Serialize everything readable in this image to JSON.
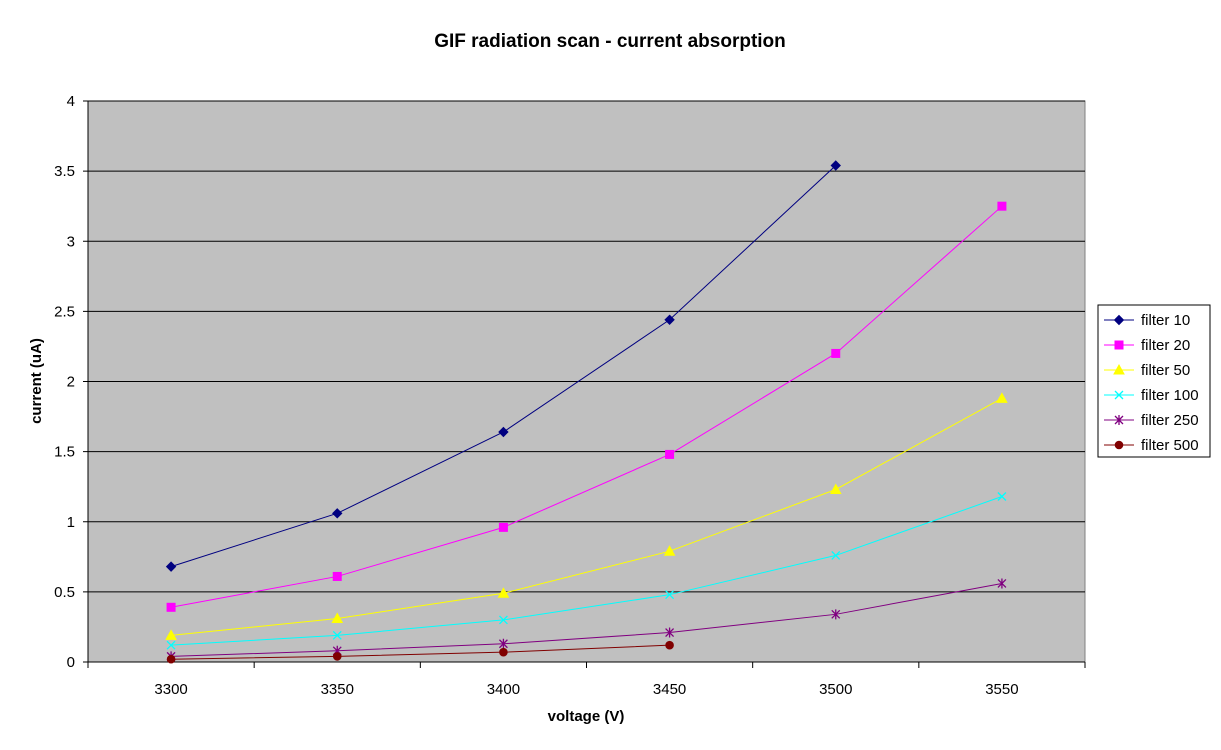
{
  "chart_data": {
    "type": "line",
    "title": "GIF radiation scan - current absorption",
    "xlabel": "voltage (V)",
    "ylabel": "current (uA)",
    "categories": [
      "3300",
      "3350",
      "3400",
      "3450",
      "3500",
      "3550"
    ],
    "ylim": [
      0,
      4
    ],
    "yticks": [
      "0",
      "0.5",
      "1",
      "1.5",
      "2",
      "2.5",
      "3",
      "3.5",
      "4"
    ],
    "grid": "horizontal major gridlines",
    "plot_background": "#C0C0C0",
    "legend_position": "right",
    "series": [
      {
        "name": "filter 10",
        "color": "#000080",
        "marker": "diamond",
        "values": [
          0.68,
          1.06,
          1.64,
          2.44,
          3.54,
          null
        ]
      },
      {
        "name": "filter 20",
        "color": "#FF00FF",
        "marker": "square",
        "values": [
          0.39,
          0.61,
          0.96,
          1.48,
          2.2,
          3.25
        ]
      },
      {
        "name": "filter 50",
        "color": "#FFFF00",
        "marker": "triangle",
        "values": [
          0.19,
          0.31,
          0.49,
          0.79,
          1.23,
          1.88
        ]
      },
      {
        "name": "filter 100",
        "color": "#00FFFF",
        "marker": "x",
        "values": [
          0.12,
          0.19,
          0.3,
          0.48,
          0.76,
          1.18
        ]
      },
      {
        "name": "filter 250",
        "color": "#800080",
        "marker": "star",
        "values": [
          0.04,
          0.08,
          0.13,
          0.21,
          0.34,
          0.56
        ]
      },
      {
        "name": "filter 500",
        "color": "#800000",
        "marker": "circle",
        "values": [
          0.02,
          0.04,
          0.07,
          0.12,
          null,
          null
        ]
      }
    ]
  }
}
